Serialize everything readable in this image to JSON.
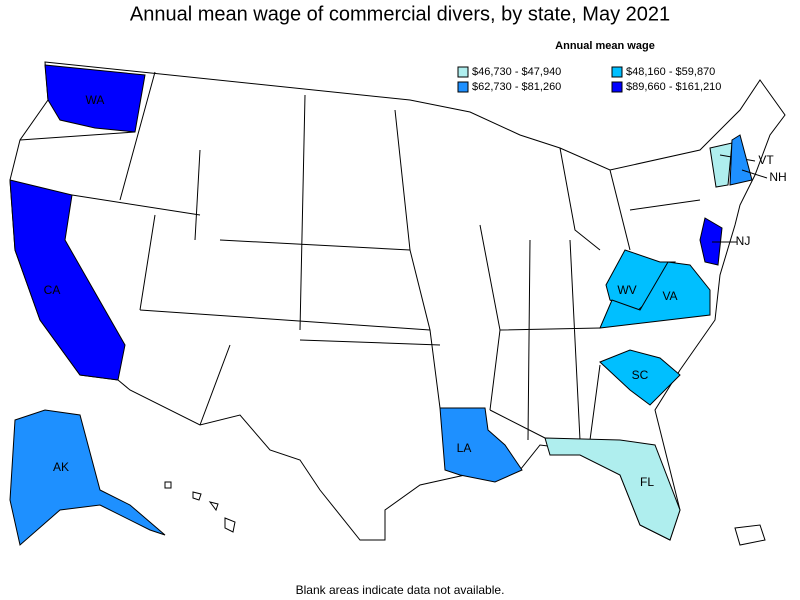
{
  "title": "Annual mean wage of commercial divers, by state, May 2021",
  "legend": {
    "title": "Annual mean wage",
    "items": [
      {
        "label": "$46,730 - $47,940",
        "color": "#afeeee"
      },
      {
        "label": "$48,160 - $59,870",
        "color": "#00bfff"
      },
      {
        "label": "$62,730 - $81,260",
        "color": "#1e90ff"
      },
      {
        "label": "$89,660 - $161,210",
        "color": "#0000ff"
      }
    ]
  },
  "states": [
    {
      "label": "WA",
      "color": "#0000ff"
    },
    {
      "label": "CA",
      "color": "#0000ff"
    },
    {
      "label": "NJ",
      "color": "#0000ff"
    },
    {
      "label": "VT",
      "color": "#afeeee"
    },
    {
      "label": "NH",
      "color": "#1e90ff"
    },
    {
      "label": "WV",
      "color": "#00bfff"
    },
    {
      "label": "VA",
      "color": "#00bfff"
    },
    {
      "label": "SC",
      "color": "#00bfff"
    },
    {
      "label": "LA",
      "color": "#1e90ff"
    },
    {
      "label": "FL",
      "color": "#afeeee"
    },
    {
      "label": "AK",
      "color": "#1e90ff"
    }
  ],
  "footnote": "Blank areas indicate data not available."
}
